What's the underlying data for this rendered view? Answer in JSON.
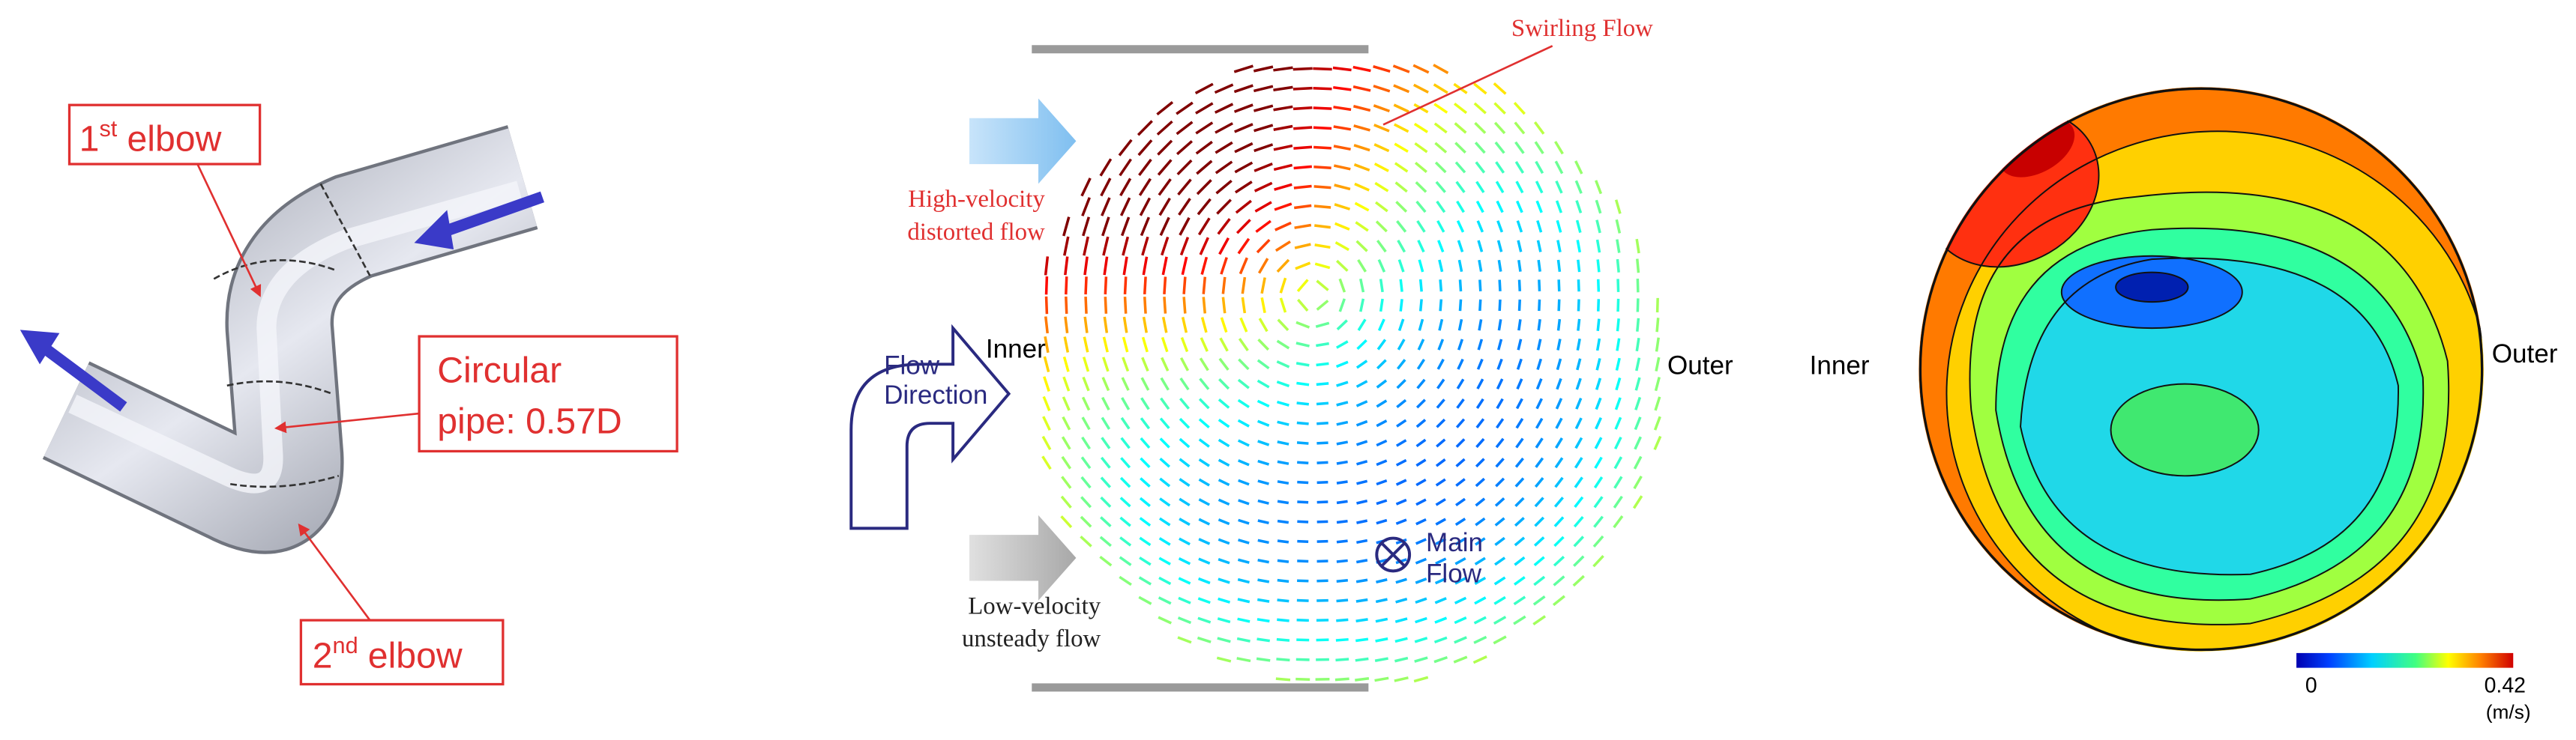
{
  "pipe": {
    "first_elbow": {
      "number": "1",
      "suffix": "st",
      "text": "elbow"
    },
    "pipe_label": [
      "Circular",
      "pipe: 0.57D"
    ],
    "second_elbow": {
      "number": "2",
      "suffix": "nd",
      "text": "elbow"
    }
  },
  "vector_field": {
    "swirling": "Swirling Flow",
    "high_velocity": [
      "High-velocity",
      "distorted flow"
    ],
    "flow_direction": [
      "Flow",
      "Direction"
    ],
    "inner": "Inner",
    "outer": "Outer",
    "main_flow": [
      "Main",
      "Flow"
    ],
    "low_velocity": [
      "Low-velocity",
      "unsteady flow"
    ]
  },
  "contour": {
    "inner": "Inner",
    "outer": "Outer",
    "colorbar": {
      "min": 0,
      "max": 0.42,
      "unit": "(m/s)"
    }
  }
}
